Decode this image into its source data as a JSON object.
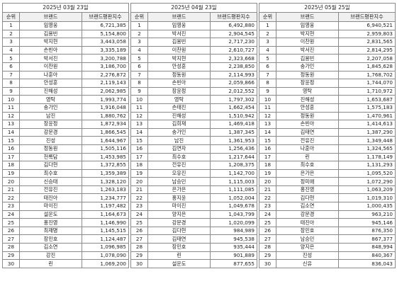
{
  "headers": {
    "rank": "순위",
    "brand": "브랜드",
    "index": "브랜드평판지수"
  },
  "periods": [
    {
      "date": "2025년 03월 23일",
      "rows": [
        [
          "1",
          "임영웅",
          "6,721,385"
        ],
        [
          "2",
          "김용빈",
          "5,154,800"
        ],
        [
          "3",
          "박지현",
          "3,443,058"
        ],
        [
          "4",
          "손빈아",
          "3,335,189"
        ],
        [
          "5",
          "박서진",
          "3,200,788"
        ],
        [
          "6",
          "이찬원",
          "3,186,700"
        ],
        [
          "7",
          "나훈아",
          "2,276,872"
        ],
        [
          "8",
          "안성훈",
          "2,119,143"
        ],
        [
          "9",
          "진해성",
          "2,062,985"
        ],
        [
          "10",
          "영탁",
          "1,993,774"
        ],
        [
          "11",
          "송가인",
          "1,916,048"
        ],
        [
          "12",
          "남진",
          "1,880,762"
        ],
        [
          "13",
          "장윤정",
          "1,872,934"
        ],
        [
          "14",
          "강문경",
          "1,866,545"
        ],
        [
          "15",
          "진성",
          "1,644,967"
        ],
        [
          "16",
          "정동원",
          "1,505,116"
        ],
        [
          "17",
          "천록담",
          "1,453,985"
        ],
        [
          "18",
          "김다현",
          "1,372,855"
        ],
        [
          "19",
          "최수호",
          "1,359,389"
        ],
        [
          "20",
          "신승태",
          "1,328,120"
        ],
        [
          "21",
          "전유진",
          "1,263,183"
        ],
        [
          "22",
          "태진아",
          "1,234,777"
        ],
        [
          "23",
          "마이진",
          "1,197,482"
        ],
        [
          "24",
          "설운도",
          "1,164,673"
        ],
        [
          "25",
          "홍진영",
          "1,146,990"
        ],
        [
          "26",
          "최재명",
          "1,145,515"
        ],
        [
          "27",
          "장민호",
          "1,124,487"
        ],
        [
          "28",
          "김소연",
          "1,096,985"
        ],
        [
          "29",
          "강진",
          "1,078,090"
        ],
        [
          "30",
          "린",
          "1,069,200"
        ]
      ]
    },
    {
      "date": "2025년 04월 23일",
      "rows": [
        [
          "1",
          "임영웅",
          "6,492,880"
        ],
        [
          "2",
          "박서진",
          "2,904,545"
        ],
        [
          "3",
          "김용빈",
          "2,717,230"
        ],
        [
          "4",
          "이찬원",
          "2,610,727"
        ],
        [
          "5",
          "박지현",
          "2,323,668"
        ],
        [
          "6",
          "안성훈",
          "2,238,850"
        ],
        [
          "7",
          "정동원",
          "2,114,993"
        ],
        [
          "8",
          "손빈아",
          "2,059,866"
        ],
        [
          "9",
          "장윤정",
          "2,012,552"
        ],
        [
          "10",
          "영탁",
          "1,797,302"
        ],
        [
          "11",
          "손태진",
          "1,662,454"
        ],
        [
          "12",
          "진해성",
          "1,510,942"
        ],
        [
          "13",
          "김희재",
          "1,469,418"
        ],
        [
          "14",
          "송가인",
          "1,387,345"
        ],
        [
          "15",
          "남진",
          "1,361,953"
        ],
        [
          "16",
          "김연자",
          "1,256,436"
        ],
        [
          "17",
          "최수호",
          "1,217,644"
        ],
        [
          "18",
          "전유진",
          "1,208,375"
        ],
        [
          "19",
          "오유진",
          "1,142,700"
        ],
        [
          "20",
          "남승민",
          "1,115,003"
        ],
        [
          "21",
          "은가은",
          "1,111,085"
        ],
        [
          "22",
          "홍지윤",
          "1,052,004"
        ],
        [
          "23",
          "마이진",
          "1,049,678"
        ],
        [
          "24",
          "양지은",
          "1,043,799"
        ],
        [
          "25",
          "강문경",
          "1,020,099"
        ],
        [
          "26",
          "김다현",
          "984,989"
        ],
        [
          "27",
          "김태연",
          "945,538"
        ],
        [
          "28",
          "장민호",
          "935,444"
        ],
        [
          "29",
          "린",
          "901,889"
        ],
        [
          "30",
          "설운도",
          "877,655"
        ]
      ]
    },
    {
      "date": "2025년 05월 25일",
      "rows": [
        [
          "1",
          "임영웅",
          "6,940,521"
        ],
        [
          "2",
          "박지현",
          "2,959,803"
        ],
        [
          "3",
          "이찬원",
          "2,831,565"
        ],
        [
          "4",
          "박서진",
          "2,814,295"
        ],
        [
          "5",
          "김용빈",
          "2,207,058"
        ],
        [
          "6",
          "송가인",
          "1,845,628"
        ],
        [
          "7",
          "정동원",
          "1,768,702"
        ],
        [
          "8",
          "장윤정",
          "1,744,070"
        ],
        [
          "9",
          "영탁",
          "1,710,972"
        ],
        [
          "10",
          "진해성",
          "1,653,687"
        ],
        [
          "11",
          "안성훈",
          "1,575,183"
        ],
        [
          "12",
          "정동원",
          "1,470,961"
        ],
        [
          "13",
          "손빈아",
          "1,414,613"
        ],
        [
          "14",
          "김태연",
          "1,387,290"
        ],
        [
          "15",
          "전유진",
          "1,349,448"
        ],
        [
          "16",
          "나훈아",
          "1,324,565"
        ],
        [
          "17",
          "린",
          "1,178,149"
        ],
        [
          "18",
          "최수호",
          "1,131,293"
        ],
        [
          "19",
          "은가은",
          "1,095,520"
        ],
        [
          "20",
          "정미애",
          "1,072,290"
        ],
        [
          "21",
          "홍진영",
          "1,063,209"
        ],
        [
          "22",
          "김다현",
          "1,019,310"
        ],
        [
          "23",
          "김소연",
          "1,000,435"
        ],
        [
          "24",
          "강문경",
          "963,210"
        ],
        [
          "25",
          "태진아",
          "945,146"
        ],
        [
          "26",
          "장민호",
          "876,350"
        ],
        [
          "27",
          "남승민",
          "867,377"
        ],
        [
          "28",
          "양지은",
          "848,994"
        ],
        [
          "29",
          "진성",
          "840,367"
        ],
        [
          "30",
          "신유",
          "836,043"
        ]
      ]
    }
  ]
}
